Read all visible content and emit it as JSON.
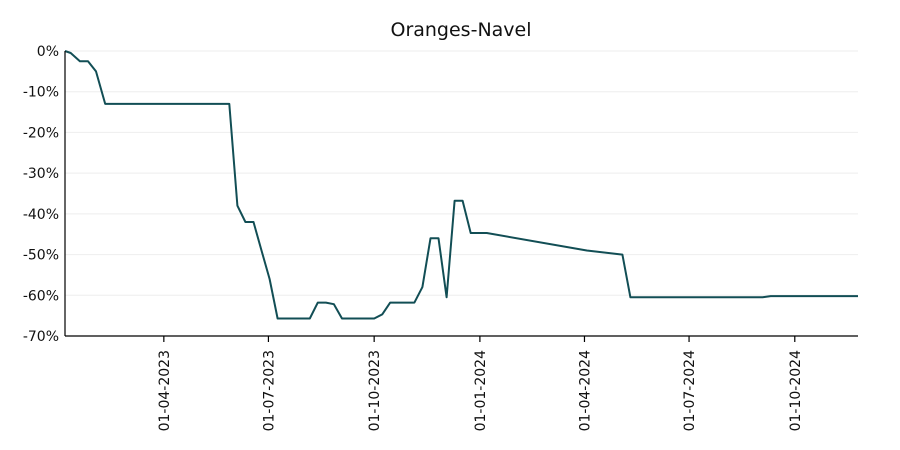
{
  "chart_data": {
    "type": "line",
    "title": "Oranges-Navel",
    "xlabel": "",
    "ylabel": "",
    "y_format": "percent",
    "ylim": [
      -70,
      0
    ],
    "y_ticks": [
      0,
      -10,
      -20,
      -30,
      -40,
      -50,
      -60,
      -70
    ],
    "y_tick_labels": [
      "0%",
      "-10%",
      "-20%",
      "-30%",
      "-40%",
      "-50%",
      "-60%",
      "-70%"
    ],
    "xlim": [
      "2023-01-05",
      "2024-11-25"
    ],
    "x_ticks": [
      "2023-04-01",
      "2023-07-01",
      "2023-10-01",
      "2024-01-01",
      "2024-04-01",
      "2024-07-01",
      "2024-10-01"
    ],
    "x_tick_labels": [
      "01-04-2023",
      "01-07-2023",
      "01-10-2023",
      "01-01-2024",
      "01-04-2024",
      "01-07-2024",
      "01-10-2024"
    ],
    "grid": "horizontal",
    "line_color": "#124e55",
    "series": [
      {
        "x": [
          "2023-01-05",
          "2023-01-10",
          "2023-01-18",
          "2023-01-25",
          "2023-02-01",
          "2023-02-09",
          "2023-05-28",
          "2023-06-04",
          "2023-06-11",
          "2023-06-18",
          "2023-06-25",
          "2023-07-02",
          "2023-07-09",
          "2023-07-16",
          "2023-07-23",
          "2023-07-30",
          "2023-08-06",
          "2023-08-13",
          "2023-08-20",
          "2023-08-27",
          "2023-09-03",
          "2023-09-10",
          "2023-09-17",
          "2023-09-24",
          "2023-10-01",
          "2023-10-08",
          "2023-10-15",
          "2023-10-22",
          "2023-10-29",
          "2023-11-05",
          "2023-11-12",
          "2023-11-19",
          "2023-11-26",
          "2023-12-03",
          "2023-12-10",
          "2023-12-17",
          "2023-12-24",
          "2023-12-31",
          "2024-01-07",
          "2024-04-03",
          "2024-05-04",
          "2024-05-11",
          "2024-05-18",
          "2024-05-25",
          "2024-09-03",
          "2024-09-10",
          "2024-11-25"
        ],
        "values": [
          0,
          -0.5,
          -2.5,
          -2.5,
          -5,
          -13,
          -13,
          -38,
          -42,
          -42,
          -49,
          -56,
          -65.7,
          -65.7,
          -65.7,
          -65.7,
          -65.7,
          -61.8,
          -61.8,
          -62.2,
          -65.7,
          -65.7,
          -65.7,
          -65.7,
          -65.7,
          -64.7,
          -61.8,
          -61.8,
          -61.8,
          -61.8,
          -58,
          -46,
          -46,
          -60.5,
          -36.8,
          -36.8,
          -44.7,
          -44.7,
          -44.7,
          -49,
          -50,
          -60.5,
          -60.5,
          -60.5,
          -60.5,
          -60.2,
          -60.2
        ]
      }
    ]
  }
}
